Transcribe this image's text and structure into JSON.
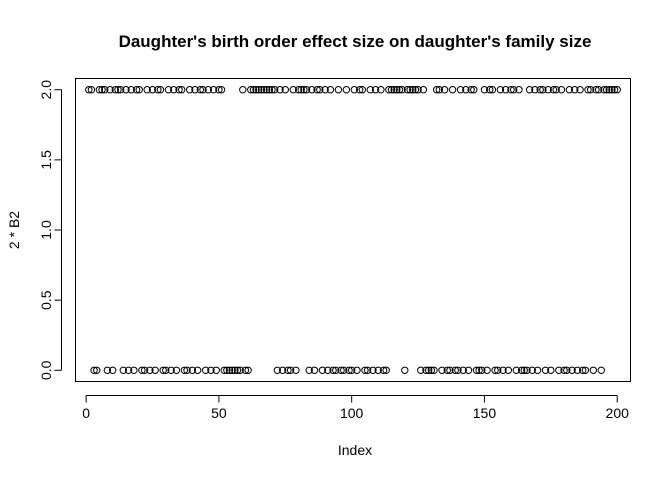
{
  "chart_data": {
    "type": "scatter",
    "title": "Daughter's birth order effect size  on daughter's family size",
    "xlabel": "Index",
    "ylabel": "2 * B2",
    "xlim": [
      -4,
      205
    ],
    "ylim": [
      -0.08,
      2.08
    ],
    "xticks": [
      0,
      50,
      100,
      150,
      200
    ],
    "yticks": [
      0.0,
      0.5,
      1.0,
      1.5,
      2.0
    ],
    "xtick_labels": [
      "0",
      "50",
      "100",
      "150",
      "200"
    ],
    "ytick_labels": [
      "0.0",
      "0.5",
      "1.0",
      "1.5",
      "2.0"
    ],
    "grid": false,
    "marker": "open-circle",
    "y": [
      2,
      2,
      0,
      0,
      2,
      2,
      2,
      0,
      2,
      0,
      2,
      2,
      2,
      0,
      2,
      0,
      2,
      0,
      2,
      2,
      0,
      0,
      2,
      0,
      2,
      0,
      2,
      2,
      0,
      0,
      2,
      0,
      2,
      0,
      2,
      2,
      0,
      0,
      2,
      0,
      2,
      0,
      2,
      2,
      0,
      2,
      0,
      2,
      0,
      2,
      2,
      0,
      0,
      0,
      0,
      0,
      0,
      0,
      2,
      0,
      0,
      2,
      2,
      2,
      2,
      2,
      2,
      2,
      2,
      2,
      2,
      0,
      2,
      0,
      2,
      0,
      0,
      2,
      0,
      2,
      2,
      2,
      2,
      0,
      2,
      0,
      2,
      2,
      0,
      2,
      0,
      2,
      0,
      0,
      2,
      0,
      0,
      2,
      0,
      0,
      2,
      0,
      2,
      2,
      0,
      0,
      2,
      0,
      2,
      0,
      2,
      0,
      0,
      2,
      2,
      2,
      2,
      2,
      2,
      0,
      2,
      2,
      2,
      2,
      2,
      0,
      2,
      0,
      0,
      0,
      0,
      2,
      2,
      0,
      2,
      0,
      0,
      2,
      0,
      0,
      2,
      0,
      2,
      0,
      2,
      2,
      0,
      0,
      0,
      2,
      0,
      2,
      2,
      0,
      0,
      2,
      0,
      2,
      0,
      2,
      2,
      0,
      2,
      0,
      0,
      0,
      2,
      0,
      2,
      0,
      2,
      2,
      0,
      2,
      0,
      2,
      2,
      0,
      2,
      0,
      0,
      2,
      0,
      2,
      0,
      2,
      0,
      0,
      2,
      2,
      0,
      2,
      2,
      0,
      2,
      2,
      2,
      2,
      2,
      2
    ]
  }
}
